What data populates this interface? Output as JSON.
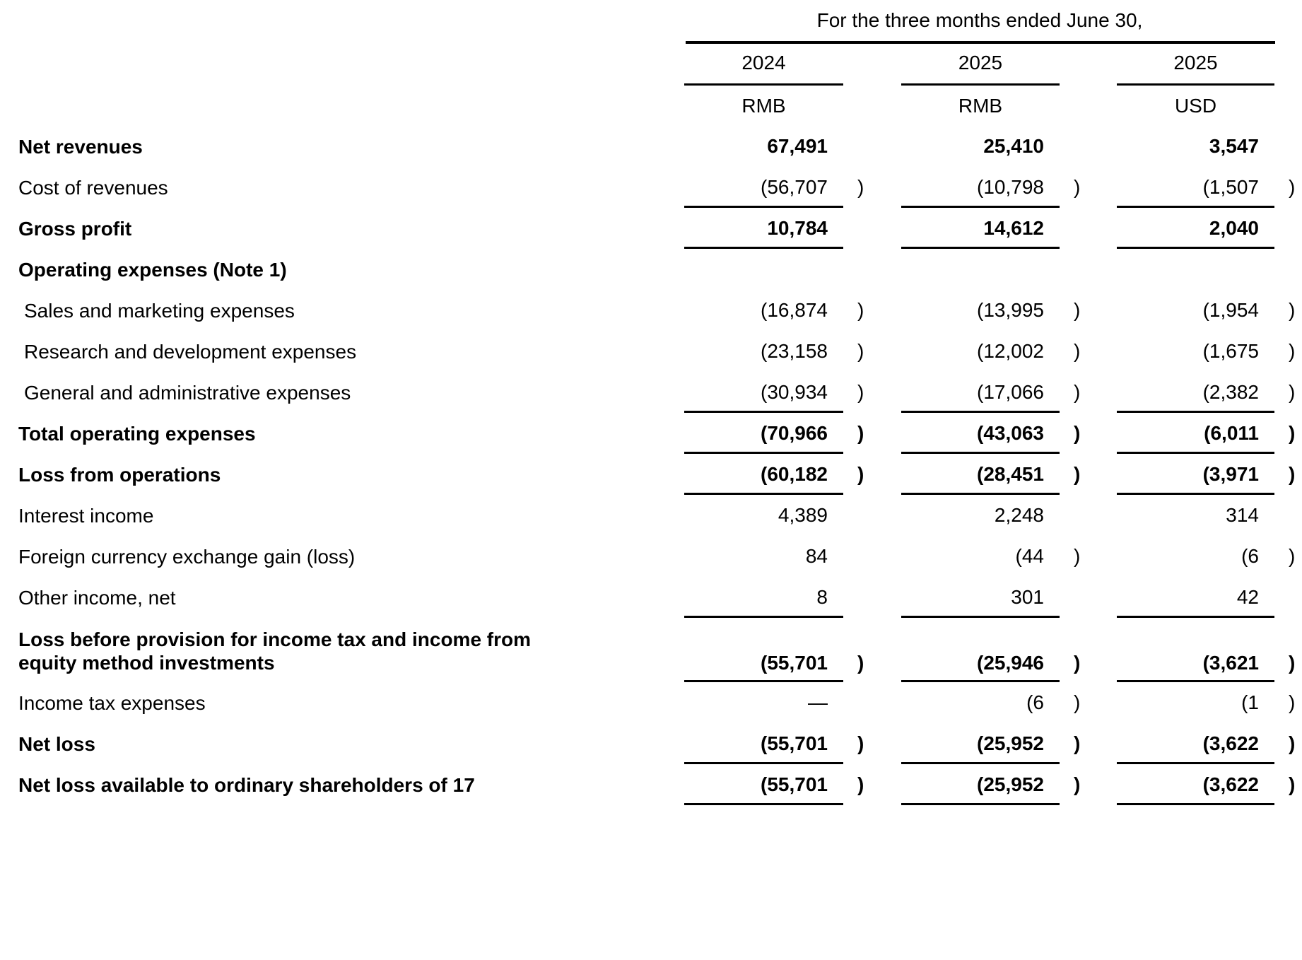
{
  "colors": {
    "background": "#ffffff",
    "text": "#000000",
    "rule": "#000000"
  },
  "table": {
    "header": {
      "period_title": "For the three months ended June 30,",
      "columns": [
        {
          "year": "2024",
          "currency": "RMB"
        },
        {
          "year": "2025",
          "currency": "RMB"
        },
        {
          "year": "2025",
          "currency": "USD"
        }
      ]
    },
    "rows": [
      {
        "label": "Net revenues",
        "bold": true,
        "indent": false,
        "tall": false,
        "rule_below": false,
        "cells": [
          {
            "num": "67,491",
            "par": ""
          },
          {
            "num": "25,410",
            "par": ""
          },
          {
            "num": "3,547",
            "par": ""
          }
        ]
      },
      {
        "label": "Cost of revenues",
        "bold": false,
        "indent": false,
        "tall": false,
        "rule_below": true,
        "cells": [
          {
            "num": "(56,707",
            "par": ")"
          },
          {
            "num": "(10,798",
            "par": ")"
          },
          {
            "num": "(1,507",
            "par": ")"
          }
        ]
      },
      {
        "label": "Gross profit",
        "bold": true,
        "indent": false,
        "tall": false,
        "rule_below": true,
        "cells": [
          {
            "num": "10,784",
            "par": ""
          },
          {
            "num": "14,612",
            "par": ""
          },
          {
            "num": "2,040",
            "par": ""
          }
        ]
      },
      {
        "label": "Operating expenses (Note 1)",
        "bold": true,
        "indent": false,
        "tall": false,
        "rule_below": false,
        "cells": [
          {
            "num": "",
            "par": ""
          },
          {
            "num": "",
            "par": ""
          },
          {
            "num": "",
            "par": ""
          }
        ]
      },
      {
        "label": "Sales and marketing expenses",
        "bold": false,
        "indent": true,
        "tall": false,
        "rule_below": false,
        "cells": [
          {
            "num": "(16,874",
            "par": ")"
          },
          {
            "num": "(13,995",
            "par": ")"
          },
          {
            "num": "(1,954",
            "par": ")"
          }
        ]
      },
      {
        "label": "Research and development expenses",
        "bold": false,
        "indent": true,
        "tall": false,
        "rule_below": false,
        "cells": [
          {
            "num": "(23,158",
            "par": ")"
          },
          {
            "num": "(12,002",
            "par": ")"
          },
          {
            "num": "(1,675",
            "par": ")"
          }
        ]
      },
      {
        "label": "General and administrative expenses",
        "bold": false,
        "indent": true,
        "tall": false,
        "rule_below": true,
        "cells": [
          {
            "num": "(30,934",
            "par": ")"
          },
          {
            "num": "(17,066",
            "par": ")"
          },
          {
            "num": "(2,382",
            "par": ")"
          }
        ]
      },
      {
        "label": "Total operating expenses",
        "bold": true,
        "indent": false,
        "tall": false,
        "rule_below": true,
        "cells": [
          {
            "num": "(70,966",
            "par": ")"
          },
          {
            "num": "(43,063",
            "par": ")"
          },
          {
            "num": "(6,011",
            "par": ")"
          }
        ]
      },
      {
        "label": "Loss from operations",
        "bold": true,
        "indent": false,
        "tall": false,
        "rule_below": true,
        "cells": [
          {
            "num": "(60,182",
            "par": ")"
          },
          {
            "num": "(28,451",
            "par": ")"
          },
          {
            "num": "(3,971",
            "par": ")"
          }
        ]
      },
      {
        "label": "Interest income",
        "bold": false,
        "indent": false,
        "tall": false,
        "rule_below": false,
        "cells": [
          {
            "num": "4,389",
            "par": ""
          },
          {
            "num": "2,248",
            "par": ""
          },
          {
            "num": "314",
            "par": ""
          }
        ]
      },
      {
        "label": "Foreign currency exchange gain (loss)",
        "bold": false,
        "indent": false,
        "tall": false,
        "rule_below": false,
        "cells": [
          {
            "num": "84",
            "par": ""
          },
          {
            "num": "(44",
            "par": ")"
          },
          {
            "num": "(6",
            "par": ")"
          }
        ]
      },
      {
        "label": "Other income, net",
        "bold": false,
        "indent": false,
        "tall": false,
        "rule_below": true,
        "cells": [
          {
            "num": "8",
            "par": ""
          },
          {
            "num": "301",
            "par": ""
          },
          {
            "num": "42",
            "par": ""
          }
        ]
      },
      {
        "label": "Loss before provision for income tax and income from equity method investments",
        "bold": true,
        "indent": false,
        "tall": true,
        "rule_below": true,
        "cells": [
          {
            "num": "(55,701",
            "par": ")"
          },
          {
            "num": "(25,946",
            "par": ")"
          },
          {
            "num": "(3,621",
            "par": ")"
          }
        ]
      },
      {
        "label": "Income tax expenses",
        "bold": false,
        "indent": false,
        "tall": false,
        "rule_below": false,
        "cells": [
          {
            "num": "—",
            "par": ""
          },
          {
            "num": "(6",
            "par": ")"
          },
          {
            "num": "(1",
            "par": ")"
          }
        ]
      },
      {
        "label": "Net loss",
        "bold": true,
        "indent": false,
        "tall": false,
        "rule_below": true,
        "cells": [
          {
            "num": "(55,701",
            "par": ")"
          },
          {
            "num": "(25,952",
            "par": ")"
          },
          {
            "num": "(3,622",
            "par": ")"
          }
        ]
      },
      {
        "label": "Net loss available to ordinary shareholders of 17",
        "bold": true,
        "indent": false,
        "tall": false,
        "rule_below": true,
        "cells": [
          {
            "num": "(55,701",
            "par": ")"
          },
          {
            "num": "(25,952",
            "par": ")"
          },
          {
            "num": "(3,622",
            "par": ")"
          }
        ]
      }
    ]
  }
}
